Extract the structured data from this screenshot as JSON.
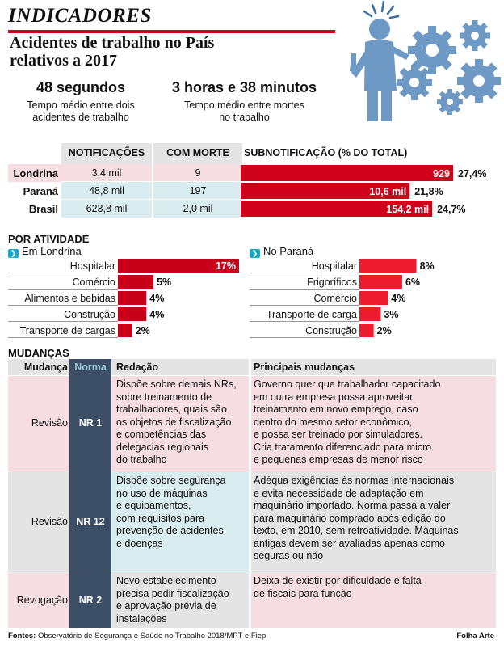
{
  "header": {
    "kicker": "INDICADORES",
    "headline_line1": "Acidentes de trabalho no País",
    "headline_line2": "relativos a 2017"
  },
  "stats": [
    {
      "big": "48 segundos",
      "small_line1": "Tempo médio entre dois",
      "small_line2": "acidentes de trabalho"
    },
    {
      "big": "3 horas e 38 minutos",
      "small_line1": "Tempo médio entre mortes",
      "small_line2": "no trabalho"
    }
  ],
  "summary": {
    "columns": [
      "NOTIFICAÇÕES",
      "COM MORTE",
      "SUBNOTIFICAÇÃO (% DO TOTAL)"
    ],
    "rows": [
      {
        "label": "Londrina",
        "notificacoes": "3,4 mil",
        "com_morte": "9",
        "sub_value": "929",
        "sub_pct": "27,4%"
      },
      {
        "label": "Paraná",
        "notificacoes": "48,8 mil",
        "com_morte": "197",
        "sub_value": "10,6 mil",
        "sub_pct": "21,8%"
      },
      {
        "label": "Brasil",
        "notificacoes": "623,8 mil",
        "com_morte": "2,0 mil",
        "sub_value": "154,2 mil",
        "sub_pct": "24,7%"
      }
    ]
  },
  "activity": {
    "title": "POR ATIVIDADE",
    "arrow": "❯"
  },
  "changes": {
    "title": "MUDANÇAS",
    "headers": [
      "Mudança",
      "Norma",
      "Redação",
      "Principais mudanças"
    ],
    "rows": [
      {
        "mudanca": "Revisão",
        "norma": "NR 1",
        "redacao": [
          "Dispõe sobre demais NRs,",
          "sobre treinamento de",
          "trabalhadores, quais são",
          "os objetos de fiscalização",
          "e competências das",
          "delegacias regionais",
          "do trabalho"
        ],
        "principais": [
          "Governo quer que trabalhador capacitado",
          "em outra empresa possa aproveitar",
          "treinamento em novo emprego, caso",
          "dentro do mesmo setor econômico,",
          "e possa ser treinado por simuladores.",
          "Cria tratamento diferenciado para micro",
          "e pequenas empresas de menor risco"
        ]
      },
      {
        "mudanca": "Revisão",
        "norma": "NR 12",
        "redacao": [
          "Dispõe sobre segurança",
          "no uso de máquinas",
          "e equipamentos,",
          "com requisitos para",
          "prevenção de acidentes",
          "e doenças"
        ],
        "principais": [
          "Adéqua exigências às normas internacionais",
          "e evita necessidade de adaptação em",
          "maquinário importado. Norma passa a valer",
          "para maquinário comprado após edição do",
          "texto, em 2010, sem retroatividade. Máquinas",
          "antigas devem ser avaliadas apenas como",
          "seguras ou não"
        ]
      },
      {
        "mudanca": "Revogação",
        "norma": "NR 2",
        "redacao": [
          "Novo estabelecimento",
          "precisa pedir fiscalização",
          "e aprovação prévia de",
          "instalações"
        ],
        "principais": [
          "Deixa de existir por dificuldade e falta",
          "de fiscais para função"
        ]
      }
    ]
  },
  "footer": {
    "source_label": "Fontes:",
    "source_text": " Observatório de Segurança e Saúde no Trabalho 2018/MPT e Fiep",
    "credit": "Folha Arte"
  },
  "colors": {
    "red": "#d0021b",
    "pink_row": "#f6dde1",
    "navy_col": "#3c4e66",
    "light_cyan": "#d9ecef",
    "gray_cell": "#e4e4e4",
    "illustration_blue": "#6d99c4"
  },
  "chart_data": [
    {
      "type": "bar",
      "title": "Em Londrina",
      "categories": [
        "Hospitalar",
        "Comércio",
        "Alimentos e bebidas",
        "Construção",
        "Transporte de cargas"
      ],
      "values": [
        17,
        5,
        4,
        4,
        2
      ],
      "labels": [
        "17%",
        "5%",
        "4%",
        "4%",
        "2%"
      ],
      "unit": "%",
      "orientation": "horizontal"
    },
    {
      "type": "bar",
      "title": "No Paraná",
      "categories": [
        "Hospitalar",
        "Frigoríficos",
        "Comércio",
        "Transporte de carga",
        "Construção"
      ],
      "values": [
        8,
        6,
        4,
        3,
        2
      ],
      "labels": [
        "8%",
        "6%",
        "4%",
        "3%",
        "2%"
      ],
      "unit": "%",
      "orientation": "horizontal"
    },
    {
      "type": "bar",
      "title": "SUBNOTIFICAÇÃO (% DO TOTAL)",
      "categories": [
        "Londrina",
        "Paraná",
        "Brasil"
      ],
      "values": [
        27.4,
        21.8,
        24.7
      ],
      "labels": [
        "929",
        "10,6 mil",
        "154,2 mil"
      ],
      "unit": "%",
      "orientation": "horizontal"
    }
  ]
}
